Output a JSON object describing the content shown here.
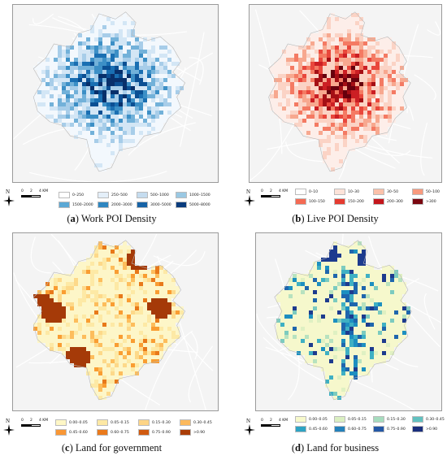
{
  "panels": [
    {
      "id": "a",
      "caption_letter": "a",
      "caption_text": "Work POI Density",
      "palette": [
        "#f3f8fd",
        "#d3e6f5",
        "#a7cde9",
        "#72b1d9",
        "#3c8fc6",
        "#1a6fb2",
        "#0b4f93",
        "#08306b"
      ],
      "legend": [
        {
          "label": "0–250",
          "color": "#ffffff"
        },
        {
          "label": "250–500",
          "color": "#e4eff9"
        },
        {
          "label": "500–1000",
          "color": "#c5dcef"
        },
        {
          "label": "1000–1500",
          "color": "#9ac8e3"
        },
        {
          "label": "1500–2000",
          "color": "#5ba8d5"
        },
        {
          "label": "2000–3000",
          "color": "#2f86c1"
        },
        {
          "label": "3000–5000",
          "color": "#1763a6"
        },
        {
          "label": "5000–8000",
          "color": "#0a3c7d"
        }
      ]
    },
    {
      "id": "b",
      "caption_letter": "b",
      "caption_text": "Live POI Density",
      "palette": [
        "#fdeee9",
        "#fbd3c5",
        "#f7a88f",
        "#f47a63",
        "#e9473c",
        "#cc1f24",
        "#a50f15",
        "#67000d"
      ],
      "legend": [
        {
          "label": "0–10",
          "color": "#ffffff"
        },
        {
          "label": "10–30",
          "color": "#fde3d9"
        },
        {
          "label": "30–50",
          "color": "#fbc1aa"
        },
        {
          "label": "50–100",
          "color": "#f89a7e"
        },
        {
          "label": "100–150",
          "color": "#f46a53"
        },
        {
          "label": "150–200",
          "color": "#e53b30"
        },
        {
          "label": "200–300",
          "color": "#c4161c"
        },
        {
          "label": ">300",
          "color": "#7a0710"
        }
      ]
    },
    {
      "id": "c",
      "caption_letter": "c",
      "caption_text": "Land for government",
      "palette": [
        "#fdf6c8",
        "#fde9a5",
        "#fdd98a",
        "#fdbd5c",
        "#f99d32",
        "#e8791a",
        "#c9530d",
        "#a53a08"
      ],
      "legend": [
        {
          "label": "0.00–0.05",
          "color": "#fef7c6"
        },
        {
          "label": "0.05–0.15",
          "color": "#fde8a4"
        },
        {
          "label": "0.15–0.30",
          "color": "#fdd486"
        },
        {
          "label": "0.30–0.45",
          "color": "#fcb95c"
        },
        {
          "label": "0.45–0.60",
          "color": "#f99735"
        },
        {
          "label": "0.60–0.75",
          "color": "#ea7a1c"
        },
        {
          "label": "0.75–0.90",
          "color": "#d05a10"
        },
        {
          "label": ">0.90",
          "color": "#a93c06"
        }
      ]
    },
    {
      "id": "d",
      "caption_letter": "d",
      "caption_text": "Land for business",
      "palette": [
        "#f6f8cc",
        "#dff0c2",
        "#b7e2bf",
        "#7ccbbf",
        "#3fb0c3",
        "#1d8fc0",
        "#1f66ad",
        "#1d3b8e"
      ],
      "legend": [
        {
          "label": "0.00–0.05",
          "color": "#f7f9cb"
        },
        {
          "label": "0.05–0.15",
          "color": "#daefc1"
        },
        {
          "label": "0.15–0.30",
          "color": "#a6dcbe"
        },
        {
          "label": "0.30–0.45",
          "color": "#61c1c0"
        },
        {
          "label": "0.45–0.60",
          "color": "#2ea3c4"
        },
        {
          "label": "0.60–0.75",
          "color": "#2381bb"
        },
        {
          "label": "0.75–0.90",
          "color": "#2458a6"
        },
        {
          "label": ">0.90",
          "color": "#1a2f7d"
        }
      ]
    }
  ],
  "scale": {
    "ticks": [
      "0",
      "2",
      "4 KM"
    ]
  },
  "north_label": "N"
}
